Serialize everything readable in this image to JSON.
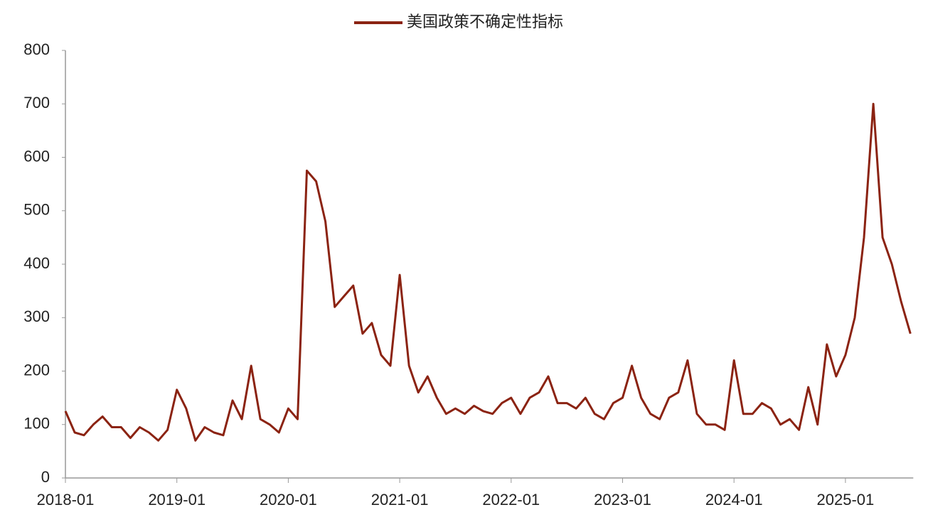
{
  "chart_data": {
    "type": "line",
    "x": [
      "2018-01",
      "2018-02",
      "2018-03",
      "2018-04",
      "2018-05",
      "2018-06",
      "2018-07",
      "2018-08",
      "2018-09",
      "2018-10",
      "2018-11",
      "2018-12",
      "2019-01",
      "2019-02",
      "2019-03",
      "2019-04",
      "2019-05",
      "2019-06",
      "2019-07",
      "2019-08",
      "2019-09",
      "2019-10",
      "2019-11",
      "2019-12",
      "2020-01",
      "2020-02",
      "2020-03",
      "2020-04",
      "2020-05",
      "2020-06",
      "2020-07",
      "2020-08",
      "2020-09",
      "2020-10",
      "2020-11",
      "2020-12",
      "2021-01",
      "2021-02",
      "2021-03",
      "2021-04",
      "2021-05",
      "2021-06",
      "2021-07",
      "2021-08",
      "2021-09",
      "2021-10",
      "2021-11",
      "2021-12",
      "2022-01",
      "2022-02",
      "2022-03",
      "2022-04",
      "2022-05",
      "2022-06",
      "2022-07",
      "2022-08",
      "2022-09",
      "2022-10",
      "2022-11",
      "2022-12",
      "2023-01",
      "2023-02",
      "2023-03",
      "2023-04",
      "2023-05",
      "2023-06",
      "2023-07",
      "2023-08",
      "2023-09",
      "2023-10",
      "2023-11",
      "2023-12",
      "2024-01",
      "2024-02",
      "2024-03",
      "2024-04",
      "2024-05",
      "2024-06",
      "2024-07",
      "2024-08",
      "2024-09",
      "2024-10",
      "2024-11",
      "2024-12",
      "2025-01",
      "2025-02",
      "2025-03",
      "2025-04",
      "2025-05",
      "2025-06",
      "2025-07",
      "2025-08"
    ],
    "series": [
      {
        "name": "美国政策不确定性指标",
        "color": "#8b2312",
        "values": [
          125,
          85,
          80,
          100,
          115,
          95,
          95,
          75,
          95,
          85,
          70,
          90,
          165,
          130,
          70,
          95,
          85,
          80,
          145,
          110,
          210,
          110,
          100,
          85,
          130,
          110,
          575,
          555,
          480,
          320,
          340,
          360,
          270,
          290,
          230,
          210,
          380,
          210,
          160,
          190,
          150,
          120,
          130,
          120,
          135,
          125,
          120,
          140,
          150,
          120,
          150,
          160,
          190,
          140,
          140,
          130,
          150,
          120,
          110,
          140,
          150,
          210,
          150,
          120,
          110,
          150,
          160,
          220,
          120,
          100,
          100,
          90,
          220,
          120,
          120,
          140,
          130,
          100,
          110,
          90,
          170,
          100,
          250,
          190,
          230,
          300,
          450,
          700,
          450,
          400,
          330,
          270
        ]
      }
    ],
    "ylim": [
      0,
      800
    ],
    "yticks": [
      0,
      100,
      200,
      300,
      400,
      500,
      600,
      700,
      800
    ],
    "xticks": [
      "2018-01",
      "2019-01",
      "2020-01",
      "2021-01",
      "2022-01",
      "2023-01",
      "2024-01",
      "2025-01"
    ],
    "legend": "top"
  }
}
